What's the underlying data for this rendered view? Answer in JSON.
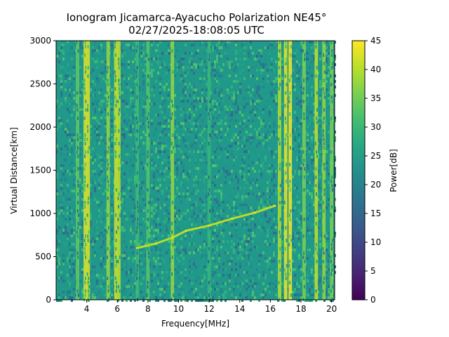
{
  "chart_data": {
    "type": "heatmap",
    "title_line1": "Ionogram Jicamarca-Ayacucho Polarization NE45°",
    "title_line2": "02/27/2025-18:08:05 UTC",
    "xlabel": "Frequency[MHz]",
    "ylabel": "Virtual Distance[km]",
    "colorbar_label": "Power[dB]",
    "colormap": "viridis",
    "xlim": [
      2.0,
      20.2
    ],
    "ylim": [
      0,
      3000
    ],
    "clim": [
      0,
      45
    ],
    "x_ticks": [
      4,
      6,
      8,
      10,
      12,
      14,
      16,
      18,
      20
    ],
    "y_ticks": [
      0,
      500,
      1000,
      1500,
      2000,
      2500,
      3000
    ],
    "colorbar_ticks": [
      0,
      5,
      10,
      15,
      20,
      25,
      30,
      35,
      40,
      45
    ],
    "background_power_db": 24,
    "bright_vertical_bands": [
      {
        "freq_mhz": 3.4,
        "power_db": 34
      },
      {
        "freq_mhz": 3.9,
        "power_db": 43
      },
      {
        "freq_mhz": 4.1,
        "power_db": 43
      },
      {
        "freq_mhz": 5.4,
        "power_db": 38
      },
      {
        "freq_mhz": 5.9,
        "power_db": 42
      },
      {
        "freq_mhz": 6.1,
        "power_db": 41
      },
      {
        "freq_mhz": 7.3,
        "power_db": 31
      },
      {
        "freq_mhz": 8.0,
        "power_db": 33
      },
      {
        "freq_mhz": 9.6,
        "power_db": 38
      },
      {
        "freq_mhz": 12.0,
        "power_db": 30
      },
      {
        "freq_mhz": 16.6,
        "power_db": 40
      },
      {
        "freq_mhz": 17.0,
        "power_db": 44
      },
      {
        "freq_mhz": 17.3,
        "power_db": 45
      },
      {
        "freq_mhz": 18.2,
        "power_db": 36
      },
      {
        "freq_mhz": 19.0,
        "power_db": 41
      },
      {
        "freq_mhz": 19.5,
        "power_db": 38
      },
      {
        "freq_mhz": 20.0,
        "power_db": 36
      }
    ],
    "echo_trace": {
      "name": "ionospheric echo",
      "power_db": 40,
      "points": [
        {
          "freq_mhz": 7.3,
          "distance_km": 600
        },
        {
          "freq_mhz": 8.5,
          "distance_km": 650
        },
        {
          "freq_mhz": 9.6,
          "distance_km": 720
        },
        {
          "freq_mhz": 10.5,
          "distance_km": 800
        },
        {
          "freq_mhz": 12.0,
          "distance_km": 860
        },
        {
          "freq_mhz": 13.5,
          "distance_km": 940
        },
        {
          "freq_mhz": 15.0,
          "distance_km": 1010
        },
        {
          "freq_mhz": 16.3,
          "distance_km": 1090
        }
      ]
    }
  }
}
